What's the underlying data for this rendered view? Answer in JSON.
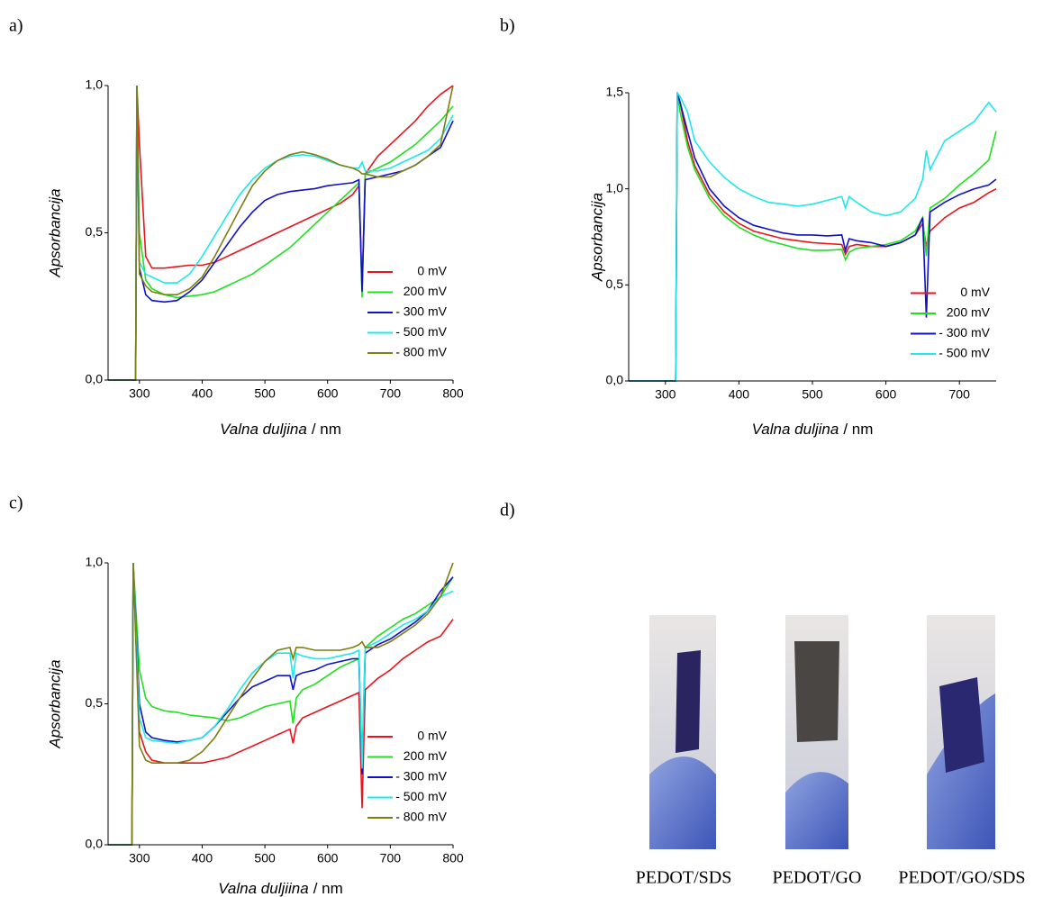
{
  "chart_data": [
    {
      "type": "line",
      "panel_label": "a)",
      "ylabel": "Apsorbancija",
      "xlabel": [
        "Valna duljina",
        "/ nm"
      ],
      "x": [
        250,
        294,
        296,
        300,
        310,
        320,
        340,
        360,
        380,
        400,
        420,
        440,
        460,
        480,
        500,
        520,
        540,
        560,
        580,
        600,
        620,
        640,
        650,
        655,
        660,
        680,
        700,
        720,
        740,
        760,
        780,
        800
      ],
      "xlim": [
        250,
        800
      ],
      "xticks": [
        300,
        400,
        500,
        600,
        700,
        800
      ],
      "ylim": [
        0,
        1
      ],
      "yticks": [
        {
          "value": 0,
          "label": "0,0"
        },
        {
          "value": 0.5,
          "label": "0,5"
        },
        {
          "value": 1,
          "label": "1,0"
        }
      ],
      "legend": "lower right",
      "series": [
        {
          "name": "0 mV",
          "color": "#e8141c",
          "values": [
            0,
            0,
            1.0,
            0.8,
            0.42,
            0.38,
            0.38,
            0.385,
            0.39,
            0.39,
            0.4,
            0.42,
            0.44,
            0.46,
            0.48,
            0.5,
            0.52,
            0.54,
            0.56,
            0.58,
            0.6,
            0.63,
            0.66,
            0.31,
            0.7,
            0.76,
            0.8,
            0.84,
            0.88,
            0.93,
            0.97,
            1.0
          ]
        },
        {
          "name": "200 mV",
          "color": "#1ee01e",
          "values": [
            0,
            0,
            1.0,
            0.5,
            0.34,
            0.31,
            0.29,
            0.28,
            0.285,
            0.29,
            0.3,
            0.32,
            0.34,
            0.36,
            0.39,
            0.42,
            0.45,
            0.49,
            0.53,
            0.57,
            0.61,
            0.65,
            0.67,
            0.28,
            0.7,
            0.72,
            0.74,
            0.77,
            0.8,
            0.84,
            0.88,
            0.93
          ]
        },
        {
          "name": "- 300 mV",
          "color": "#1010c8",
          "values": [
            0,
            0,
            1.0,
            0.38,
            0.29,
            0.27,
            0.265,
            0.27,
            0.3,
            0.34,
            0.4,
            0.46,
            0.52,
            0.57,
            0.61,
            0.63,
            0.64,
            0.645,
            0.65,
            0.66,
            0.665,
            0.67,
            0.68,
            0.3,
            0.68,
            0.69,
            0.7,
            0.71,
            0.73,
            0.76,
            0.79,
            0.88
          ]
        },
        {
          "name": "- 500 mV",
          "color": "#1ee8e8",
          "values": [
            0,
            0,
            1.0,
            0.4,
            0.36,
            0.35,
            0.33,
            0.33,
            0.36,
            0.42,
            0.49,
            0.56,
            0.63,
            0.68,
            0.72,
            0.745,
            0.76,
            0.765,
            0.76,
            0.745,
            0.73,
            0.72,
            0.72,
            0.74,
            0.71,
            0.71,
            0.72,
            0.74,
            0.76,
            0.78,
            0.82,
            0.9
          ]
        },
        {
          "name": "- 800 mV",
          "color": "#7d7d10",
          "values": [
            0,
            0,
            1.0,
            0.36,
            0.32,
            0.3,
            0.29,
            0.29,
            0.31,
            0.35,
            0.42,
            0.5,
            0.58,
            0.66,
            0.71,
            0.745,
            0.765,
            0.775,
            0.765,
            0.75,
            0.73,
            0.72,
            0.71,
            0.7,
            0.7,
            0.69,
            0.69,
            0.71,
            0.73,
            0.76,
            0.8,
            1.0
          ]
        }
      ]
    },
    {
      "type": "line",
      "panel_label": "b)",
      "ylabel": "Apsorbancija",
      "xlabel": [
        "Valna duljina",
        "/ nm"
      ],
      "x": [
        250,
        314,
        316,
        320,
        330,
        340,
        360,
        380,
        400,
        420,
        440,
        460,
        480,
        500,
        520,
        540,
        545,
        550,
        560,
        580,
        600,
        620,
        640,
        650,
        655,
        660,
        680,
        700,
        720,
        740,
        750
      ],
      "xlim": [
        250,
        750
      ],
      "xticks": [
        300,
        400,
        500,
        600,
        700
      ],
      "ylim": [
        0,
        1.5
      ],
      "yticks": [
        {
          "value": 0,
          "label": "0,0"
        },
        {
          "value": 0.5,
          "label": "0,5"
        },
        {
          "value": 1,
          "label": "1,0"
        },
        {
          "value": 1.5,
          "label": "1,5"
        }
      ],
      "legend": "lower right",
      "series": [
        {
          "name": "0 mV",
          "color": "#e8141c",
          "values": [
            0,
            0,
            1.5,
            1.45,
            1.25,
            1.12,
            0.97,
            0.88,
            0.82,
            0.78,
            0.76,
            0.74,
            0.73,
            0.72,
            0.715,
            0.71,
            0.66,
            0.7,
            0.71,
            0.7,
            0.7,
            0.72,
            0.76,
            0.82,
            0.7,
            0.78,
            0.85,
            0.9,
            0.93,
            0.98,
            1.0
          ]
        },
        {
          "name": "200 mV",
          "color": "#1ee01e",
          "values": [
            0,
            0,
            1.5,
            1.4,
            1.22,
            1.1,
            0.95,
            0.86,
            0.8,
            0.76,
            0.73,
            0.71,
            0.69,
            0.68,
            0.68,
            0.685,
            0.63,
            0.67,
            0.69,
            0.7,
            0.71,
            0.73,
            0.78,
            0.85,
            0.65,
            0.9,
            0.95,
            1.02,
            1.08,
            1.15,
            1.3
          ]
        },
        {
          "name": "- 300 mV",
          "color": "#1010c8",
          "values": [
            0,
            0,
            1.5,
            1.45,
            1.3,
            1.16,
            1.0,
            0.91,
            0.85,
            0.81,
            0.79,
            0.77,
            0.76,
            0.76,
            0.755,
            0.76,
            0.68,
            0.74,
            0.73,
            0.72,
            0.7,
            0.72,
            0.76,
            0.85,
            0.33,
            0.88,
            0.93,
            0.97,
            1.0,
            1.02,
            1.05
          ]
        },
        {
          "name": "- 500 mV",
          "color": "#1ee8e8",
          "values": [
            0,
            0,
            1.5,
            1.48,
            1.4,
            1.25,
            1.14,
            1.06,
            1.0,
            0.96,
            0.93,
            0.92,
            0.91,
            0.92,
            0.94,
            0.96,
            0.9,
            0.96,
            0.93,
            0.88,
            0.86,
            0.88,
            0.95,
            1.05,
            1.2,
            1.1,
            1.25,
            1.3,
            1.35,
            1.45,
            1.4
          ]
        }
      ]
    },
    {
      "type": "line",
      "panel_label": "c)",
      "ylabel": "Apsorbancija",
      "xlabel": [
        "Valna duljiina",
        "/ nm"
      ],
      "x": [
        250,
        288,
        290,
        300,
        310,
        320,
        340,
        360,
        380,
        400,
        420,
        440,
        460,
        480,
        500,
        520,
        540,
        545,
        550,
        560,
        580,
        600,
        620,
        640,
        650,
        655,
        660,
        680,
        700,
        720,
        740,
        760,
        780,
        800
      ],
      "xlim": [
        250,
        800
      ],
      "xticks": [
        300,
        400,
        500,
        600,
        700,
        800
      ],
      "ylim": [
        0,
        1
      ],
      "yticks": [
        {
          "value": 0,
          "label": "0,0"
        },
        {
          "value": 0.5,
          "label": "0,5"
        },
        {
          "value": 1,
          "label": "1,0"
        }
      ],
      "legend": "lower right",
      "series": [
        {
          "name": "0 mV",
          "color": "#e8141c",
          "values": [
            0,
            0,
            1.0,
            0.4,
            0.33,
            0.3,
            0.29,
            0.29,
            0.29,
            0.29,
            0.3,
            0.31,
            0.33,
            0.35,
            0.37,
            0.39,
            0.41,
            0.36,
            0.42,
            0.45,
            0.47,
            0.49,
            0.51,
            0.53,
            0.54,
            0.13,
            0.55,
            0.59,
            0.62,
            0.66,
            0.69,
            0.72,
            0.74,
            0.8
          ]
        },
        {
          "name": "200 mV",
          "color": "#1ee01e",
          "values": [
            0,
            0,
            1.0,
            0.62,
            0.52,
            0.49,
            0.475,
            0.47,
            0.46,
            0.455,
            0.45,
            0.44,
            0.45,
            0.47,
            0.49,
            0.5,
            0.51,
            0.43,
            0.52,
            0.55,
            0.57,
            0.6,
            0.63,
            0.65,
            0.66,
            0.3,
            0.7,
            0.74,
            0.77,
            0.8,
            0.82,
            0.85,
            0.88,
            0.95
          ]
        },
        {
          "name": "- 300 mV",
          "color": "#1010c8",
          "values": [
            0,
            0,
            1.0,
            0.5,
            0.4,
            0.38,
            0.37,
            0.365,
            0.37,
            0.38,
            0.42,
            0.47,
            0.52,
            0.56,
            0.58,
            0.6,
            0.6,
            0.55,
            0.6,
            0.61,
            0.62,
            0.64,
            0.65,
            0.66,
            0.66,
            0.25,
            0.68,
            0.71,
            0.73,
            0.76,
            0.79,
            0.83,
            0.9,
            0.95
          ]
        },
        {
          "name": "- 500 mV",
          "color": "#1ee8e8",
          "values": [
            0,
            0,
            1.0,
            0.45,
            0.38,
            0.37,
            0.365,
            0.36,
            0.37,
            0.38,
            0.42,
            0.48,
            0.55,
            0.61,
            0.65,
            0.68,
            0.68,
            0.59,
            0.68,
            0.67,
            0.66,
            0.66,
            0.67,
            0.68,
            0.69,
            0.27,
            0.7,
            0.72,
            0.75,
            0.78,
            0.8,
            0.83,
            0.88,
            0.9
          ]
        },
        {
          "name": "- 800 mV",
          "color": "#7d7d10",
          "values": [
            0,
            0,
            1.0,
            0.35,
            0.3,
            0.29,
            0.29,
            0.29,
            0.3,
            0.33,
            0.38,
            0.45,
            0.52,
            0.59,
            0.65,
            0.69,
            0.7,
            0.66,
            0.7,
            0.7,
            0.69,
            0.69,
            0.69,
            0.7,
            0.71,
            0.72,
            0.7,
            0.7,
            0.72,
            0.75,
            0.78,
            0.82,
            0.88,
            1.0
          ]
        }
      ]
    }
  ],
  "photos": {
    "panel_label": "d)",
    "captions": [
      "PEDOT/SDS",
      "PEDOT/GO",
      "PEDOT/GO/SDS"
    ]
  }
}
